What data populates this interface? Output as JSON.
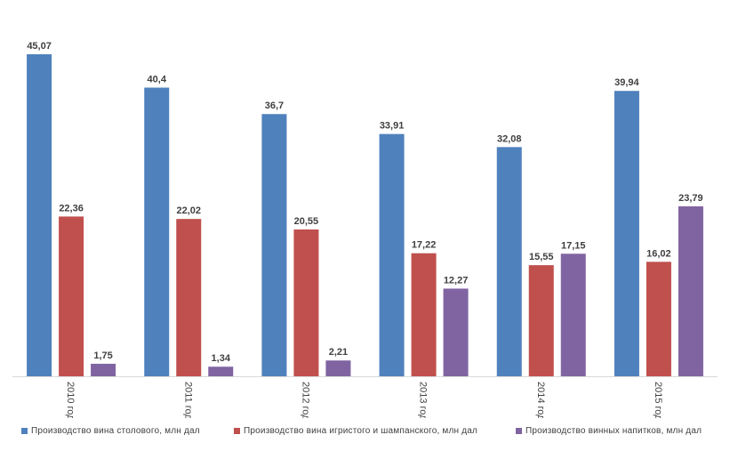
{
  "chart_data": {
    "type": "bar",
    "categories": [
      "2010 год",
      "2011 год",
      "2012 год",
      "2013 год",
      "2014 год",
      "2015 год"
    ],
    "series": [
      {
        "name": "Производство вина столового, млн дал",
        "color": "#4F81BD",
        "values": [
          45.07,
          40.4,
          36.7,
          33.91,
          32.08,
          39.94
        ],
        "labels": [
          "45,07",
          "40,4",
          "36,7",
          "33,91",
          "32,08",
          "39,94"
        ]
      },
      {
        "name": "Производство вина игристого и шампанского, млн дал",
        "color": "#C0504D",
        "values": [
          22.36,
          22.02,
          20.55,
          17.22,
          15.55,
          16.02
        ],
        "labels": [
          "22,36",
          "22,02",
          "20,55",
          "17,22",
          "15,55",
          "16,02"
        ]
      },
      {
        "name": "Производство винных напитков, млн дал",
        "color": "#8064A2",
        "values": [
          1.75,
          1.34,
          2.21,
          12.27,
          17.15,
          23.79
        ],
        "labels": [
          "1,75",
          "1,34",
          "2,21",
          "12,27",
          "17,15",
          "23,79"
        ]
      }
    ],
    "title": "",
    "xlabel": "",
    "ylabel": "",
    "ylim": [
      0,
      45.07
    ],
    "grid": false,
    "legend_position": "bottom"
  }
}
